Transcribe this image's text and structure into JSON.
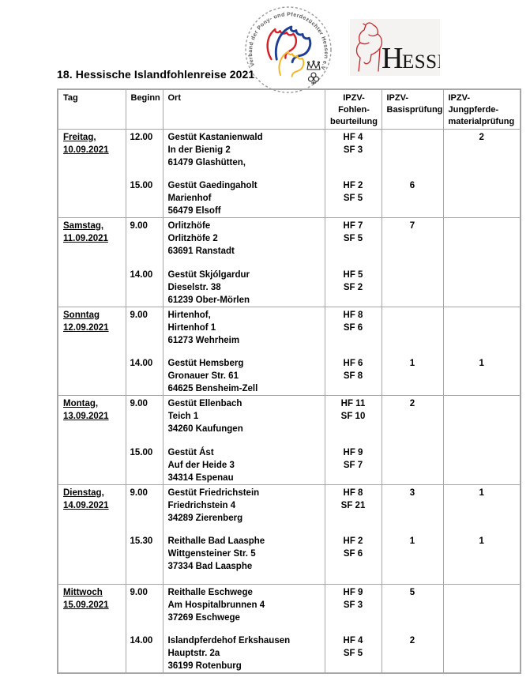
{
  "title": "18. Hessische Islandfohlenreise 2021",
  "logos": {
    "verband_arc_text": "Verband der Pony- und Pferdezüchter Hessen e.V.",
    "hessen_label_initial": "H",
    "hessen_label_rest": "ESSEN",
    "colors": {
      "horse_red": "#d42027",
      "horse_blue": "#1e3f93",
      "horse_yellow": "#f4b525",
      "hessen_red": "#c5272d"
    }
  },
  "table": {
    "headers": {
      "tag": "Tag",
      "beginn": "Beginn",
      "ort": "Ort",
      "fohlen": [
        "IPZV-",
        "Fohlen-",
        "beurteilung"
      ],
      "basis": [
        "IPZV-",
        "Basisprüfung"
      ],
      "jungpferde": [
        "IPZV-",
        "Jungpferde-",
        "materialprüfung"
      ]
    },
    "days": [
      {
        "day": "Freitag,",
        "date": "10.09.2021",
        "extra_space": false,
        "entries": [
          {
            "time": "12.00",
            "location": [
              "Gestüt Kastanienwald",
              "In der Bienig 2",
              "61479 Glashütten,"
            ],
            "fohlen": [
              "HF 4",
              "SF 3"
            ],
            "basis": "",
            "jungpferde": "2"
          },
          {
            "time": "15.00",
            "location": [
              "Gestüt Gaedingaholt",
              "Marienhof",
              "56479 Elsoff"
            ],
            "fohlen": [
              "HF 2",
              "SF 5"
            ],
            "basis": "6",
            "jungpferde": ""
          }
        ]
      },
      {
        "day": "Samstag,",
        "date": "11.09.2021",
        "extra_space": false,
        "entries": [
          {
            "time": "9.00",
            "location": [
              "Orlitzhöfe",
              "Orlitzhöfe 2",
              "63691 Ranstadt"
            ],
            "fohlen": [
              "HF 7",
              "SF 5"
            ],
            "basis": "7",
            "jungpferde": ""
          },
          {
            "time": "14.00",
            "location": [
              "Gestüt Skjólgardur",
              "Dieselstr. 38",
              "61239 Ober-Mörlen"
            ],
            "fohlen": [
              "HF 5",
              "SF 2"
            ],
            "basis": "",
            "jungpferde": ""
          }
        ]
      },
      {
        "day": "Sonntag",
        "date": "12.09.2021",
        "extra_space": false,
        "entries": [
          {
            "time": "9.00",
            "location": [
              "Hirtenhof,",
              "Hirtenhof 1",
              "61273 Wehrheim"
            ],
            "fohlen": [
              "HF 8",
              "SF 6"
            ],
            "basis": "",
            "jungpferde": ""
          },
          {
            "time": "14.00",
            "location": [
              "Gestüt Hemsberg",
              "Gronauer Str. 61",
              "64625 Bensheim-Zell"
            ],
            "fohlen": [
              "HF 6",
              "SF 8"
            ],
            "basis": "1",
            "jungpferde": "1"
          }
        ]
      },
      {
        "day": "Montag,",
        "date": "13.09.2021",
        "extra_space": false,
        "entries": [
          {
            "time": "9.00",
            "location": [
              "Gestüt Ellenbach",
              "Teich 1",
              "34260 Kaufungen"
            ],
            "fohlen": [
              "HF 11",
              "SF 10"
            ],
            "basis": "2",
            "jungpferde": ""
          },
          {
            "time": "15.00",
            "location": [
              "Gestüt Ást",
              "Auf der Heide 3",
              "34314 Espenau"
            ],
            "fohlen": [
              "HF 9",
              "SF 7"
            ],
            "basis": "",
            "jungpferde": ""
          }
        ]
      },
      {
        "day": "Dienstag,",
        "date": "14.09.2021",
        "extra_space": true,
        "entries": [
          {
            "time": "9.00",
            "location": [
              "Gestüt Friedrichstein",
              "Friedrichstein 4",
              "34289 Zierenberg"
            ],
            "fohlen": [
              "HF 8",
              "SF 21"
            ],
            "basis": "3",
            "jungpferde": "1"
          },
          {
            "time": "15.30",
            "location": [
              "Reithalle Bad Laasphe",
              "Wittgensteiner Str. 5",
              "37334 Bad Laasphe"
            ],
            "fohlen": [
              "HF 2",
              "SF 6"
            ],
            "basis": "1",
            "jungpferde": "1"
          }
        ]
      },
      {
        "day": "Mittwoch",
        "date": "15.09.2021",
        "extra_space": false,
        "entries": [
          {
            "time": "9.00",
            "location": [
              "Reithalle Eschwege",
              "Am Hospitalbrunnen 4",
              "37269 Eschwege"
            ],
            "fohlen": [
              "HF 9",
              "SF 3"
            ],
            "basis": "5",
            "jungpferde": ""
          },
          {
            "time": "14.00",
            "location": [
              "Islandpferdehof Erkshausen",
              "Hauptstr. 2a",
              "36199 Rotenburg"
            ],
            "fohlen": [
              "HF 4",
              "SF 5"
            ],
            "basis": "2",
            "jungpferde": ""
          }
        ]
      }
    ]
  }
}
